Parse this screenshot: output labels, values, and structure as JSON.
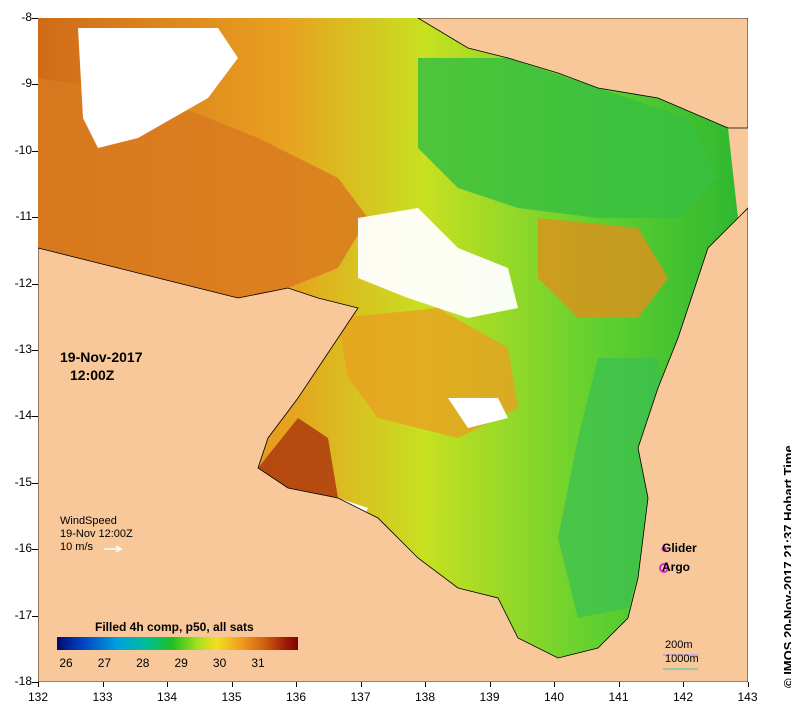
{
  "map": {
    "x_ticks": [
      "132",
      "133",
      "134",
      "135",
      "136",
      "137",
      "138",
      "139",
      "140",
      "141",
      "142",
      "143"
    ],
    "y_ticks": [
      "-8",
      "-9",
      "-10",
      "-11",
      "-12",
      "-13",
      "-14",
      "-15",
      "-16",
      "-17",
      "-18"
    ],
    "date": "19-Nov-2017",
    "time": "12:00Z",
    "colors": {
      "land": "#f8c89a",
      "cloud": "#ffffff"
    }
  },
  "wind": {
    "title": "WindSpeed",
    "time": "19-Nov 12:00Z",
    "ref": "10 m/s"
  },
  "legend": {
    "title": "Filled 4h comp, p50, all sats",
    "labels": [
      "26",
      "27",
      "28",
      "29",
      "30",
      "31"
    ],
    "glider": "Glider",
    "argo": "Argo",
    "contour1": "200m",
    "contour2": "1000m"
  },
  "credit": "© IMOS 20-Nov-2017 21:37 Hobart Time"
}
